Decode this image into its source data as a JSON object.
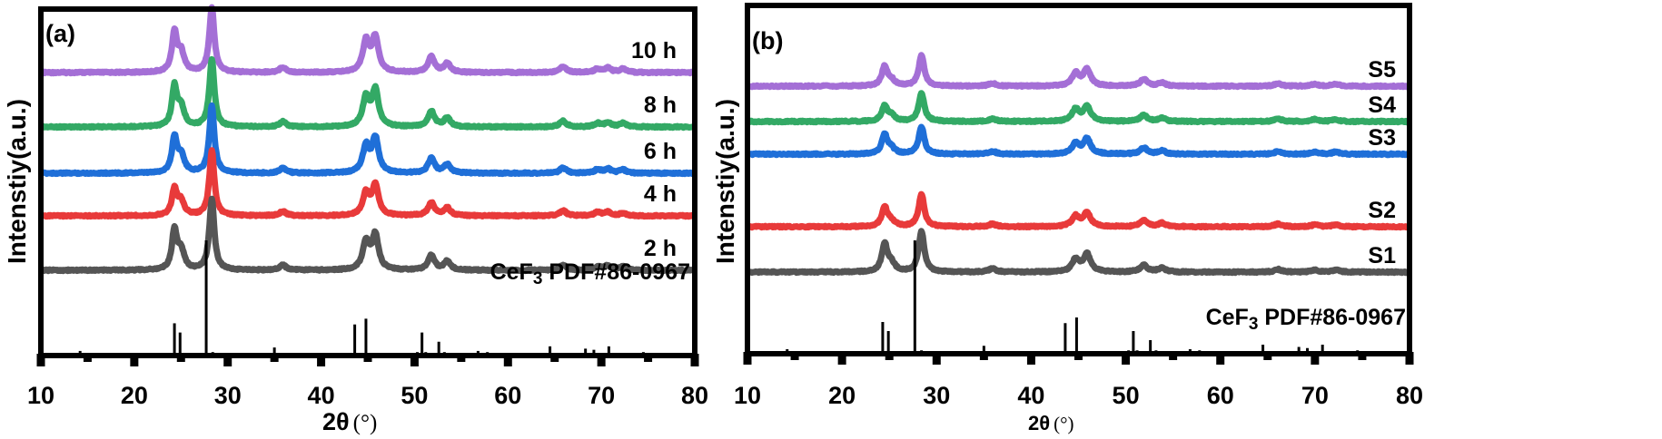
{
  "chart_data": [
    {
      "type": "line",
      "panel_label": "(a)",
      "title": "",
      "xlabel": "2θ",
      "xlabel_unit": "(°)",
      "ylabel": "Intenstiy(a.u.)",
      "xlim": [
        10,
        80
      ],
      "xticks": [
        10,
        20,
        30,
        40,
        50,
        60,
        70,
        80
      ],
      "yticks": [],
      "grid": false,
      "peaks_2theta": [
        24.3,
        25.0,
        28.3,
        35.9,
        44.8,
        45.8,
        51.8,
        53.5,
        65.9,
        69.6,
        70.7,
        72.3
      ],
      "series": [
        {
          "name": "10 h",
          "color": "#a46fd6",
          "offset": 5,
          "peak_heights": [
            0.45,
            0.22,
            0.75,
            0.06,
            0.35,
            0.4,
            0.18,
            0.1,
            0.07,
            0.04,
            0.05,
            0.04
          ]
        },
        {
          "name": "8 h",
          "color": "#33a965",
          "offset": 4,
          "peak_heights": [
            0.45,
            0.22,
            0.78,
            0.06,
            0.33,
            0.42,
            0.18,
            0.1,
            0.07,
            0.04,
            0.05,
            0.04
          ]
        },
        {
          "name": "6 h",
          "color": "#1f6fd8",
          "offset": 3,
          "peak_heights": [
            0.4,
            0.2,
            0.78,
            0.06,
            0.3,
            0.4,
            0.17,
            0.1,
            0.06,
            0.04,
            0.05,
            0.04
          ]
        },
        {
          "name": "4 h",
          "color": "#e83a3a",
          "offset": 2,
          "peak_heights": [
            0.3,
            0.16,
            0.75,
            0.05,
            0.25,
            0.35,
            0.15,
            0.09,
            0.06,
            0.04,
            0.04,
            0.03
          ]
        },
        {
          "name": "2 h",
          "color": "#555555",
          "offset": 1,
          "peak_heights": [
            0.45,
            0.22,
            0.82,
            0.06,
            0.32,
            0.4,
            0.17,
            0.1,
            0.06,
            0.04,
            0.05,
            0.04
          ]
        }
      ],
      "reference": {
        "label_main": "CeF",
        "label_sub": "3",
        "label_rest": " PDF#86-0967",
        "sticks": [
          {
            "x": 14.2,
            "h": 0.04
          },
          {
            "x": 24.3,
            "h": 0.28
          },
          {
            "x": 24.9,
            "h": 0.2
          },
          {
            "x": 27.7,
            "h": 1.0
          },
          {
            "x": 28.4,
            "h": 0.03
          },
          {
            "x": 28.9,
            "h": 0.02
          },
          {
            "x": 35.0,
            "h": 0.07
          },
          {
            "x": 38.0,
            "h": 0.02
          },
          {
            "x": 40.2,
            "h": 0.02
          },
          {
            "x": 43.6,
            "h": 0.27
          },
          {
            "x": 44.8,
            "h": 0.32
          },
          {
            "x": 45.7,
            "h": 0.02
          },
          {
            "x": 50.3,
            "h": 0.03
          },
          {
            "x": 50.8,
            "h": 0.2
          },
          {
            "x": 51.2,
            "h": 0.03
          },
          {
            "x": 52.6,
            "h": 0.12
          },
          {
            "x": 53.2,
            "h": 0.03
          },
          {
            "x": 54.0,
            "h": 0.02
          },
          {
            "x": 56.8,
            "h": 0.04
          },
          {
            "x": 57.8,
            "h": 0.03
          },
          {
            "x": 59.0,
            "h": 0.02
          },
          {
            "x": 64.5,
            "h": 0.08
          },
          {
            "x": 65.2,
            "h": 0.02
          },
          {
            "x": 66.5,
            "h": 0.02
          },
          {
            "x": 68.3,
            "h": 0.06
          },
          {
            "x": 69.2,
            "h": 0.05
          },
          {
            "x": 70.8,
            "h": 0.08
          },
          {
            "x": 74.5,
            "h": 0.03
          },
          {
            "x": 75.3,
            "h": 0.02
          },
          {
            "x": 77.0,
            "h": 0.02
          },
          {
            "x": 78.5,
            "h": 0.02
          }
        ]
      }
    },
    {
      "type": "line",
      "panel_label": "(b)",
      "title": "",
      "xlabel": "2θ",
      "xlabel_unit": "(°)",
      "ylabel": "Intenstiy(a.u.)",
      "xlim": [
        10,
        80
      ],
      "xticks": [
        10,
        20,
        30,
        40,
        50,
        60,
        70,
        80
      ],
      "yticks": [],
      "grid": false,
      "peaks_2theta": [
        24.5,
        25.2,
        28.4,
        35.9,
        44.7,
        45.9,
        51.9,
        53.8,
        66.1,
        70.0,
        72.2
      ],
      "series": [
        {
          "name": "S5",
          "color": "#a46fd6",
          "offset": 5,
          "peak_heights": [
            0.28,
            0.08,
            0.45,
            0.04,
            0.18,
            0.24,
            0.1,
            0.05,
            0.04,
            0.03,
            0.03
          ]
        },
        {
          "name": "S4",
          "color": "#33a965",
          "offset": 4,
          "peak_heights": [
            0.22,
            0.08,
            0.42,
            0.04,
            0.17,
            0.22,
            0.09,
            0.05,
            0.04,
            0.03,
            0.03
          ]
        },
        {
          "name": "S3",
          "color": "#1f6fd8",
          "offset": 3,
          "peak_heights": [
            0.28,
            0.08,
            0.4,
            0.04,
            0.15,
            0.22,
            0.09,
            0.05,
            0.04,
            0.03,
            0.03
          ]
        },
        {
          "name": "S2",
          "color": "#e83a3a",
          "offset": 2,
          "peak_heights": [
            0.28,
            0.08,
            0.48,
            0.04,
            0.15,
            0.2,
            0.09,
            0.05,
            0.04,
            0.03,
            0.03
          ]
        },
        {
          "name": "S1",
          "color": "#555555",
          "offset": 1,
          "peak_heights": [
            0.4,
            0.12,
            0.6,
            0.05,
            0.18,
            0.26,
            0.1,
            0.06,
            0.04,
            0.03,
            0.03
          ]
        }
      ],
      "reference": {
        "label_main": "CeF",
        "label_sub": "3",
        "label_rest": " PDF#86-0967",
        "sticks": [
          {
            "x": 14.2,
            "h": 0.04
          },
          {
            "x": 24.3,
            "h": 0.28
          },
          {
            "x": 24.9,
            "h": 0.2
          },
          {
            "x": 27.7,
            "h": 1.0
          },
          {
            "x": 28.4,
            "h": 0.03
          },
          {
            "x": 28.9,
            "h": 0.02
          },
          {
            "x": 35.0,
            "h": 0.07
          },
          {
            "x": 38.0,
            "h": 0.02
          },
          {
            "x": 40.2,
            "h": 0.02
          },
          {
            "x": 43.6,
            "h": 0.27
          },
          {
            "x": 44.8,
            "h": 0.32
          },
          {
            "x": 45.7,
            "h": 0.02
          },
          {
            "x": 50.3,
            "h": 0.03
          },
          {
            "x": 50.8,
            "h": 0.2
          },
          {
            "x": 51.2,
            "h": 0.03
          },
          {
            "x": 52.6,
            "h": 0.12
          },
          {
            "x": 53.2,
            "h": 0.03
          },
          {
            "x": 54.0,
            "h": 0.02
          },
          {
            "x": 56.8,
            "h": 0.04
          },
          {
            "x": 57.8,
            "h": 0.03
          },
          {
            "x": 59.0,
            "h": 0.02
          },
          {
            "x": 64.5,
            "h": 0.08
          },
          {
            "x": 65.2,
            "h": 0.02
          },
          {
            "x": 66.5,
            "h": 0.02
          },
          {
            "x": 68.3,
            "h": 0.06
          },
          {
            "x": 69.2,
            "h": 0.05
          },
          {
            "x": 70.8,
            "h": 0.08
          },
          {
            "x": 74.5,
            "h": 0.03
          },
          {
            "x": 75.3,
            "h": 0.02
          },
          {
            "x": 77.0,
            "h": 0.02
          },
          {
            "x": 78.5,
            "h": 0.02
          }
        ]
      }
    }
  ]
}
